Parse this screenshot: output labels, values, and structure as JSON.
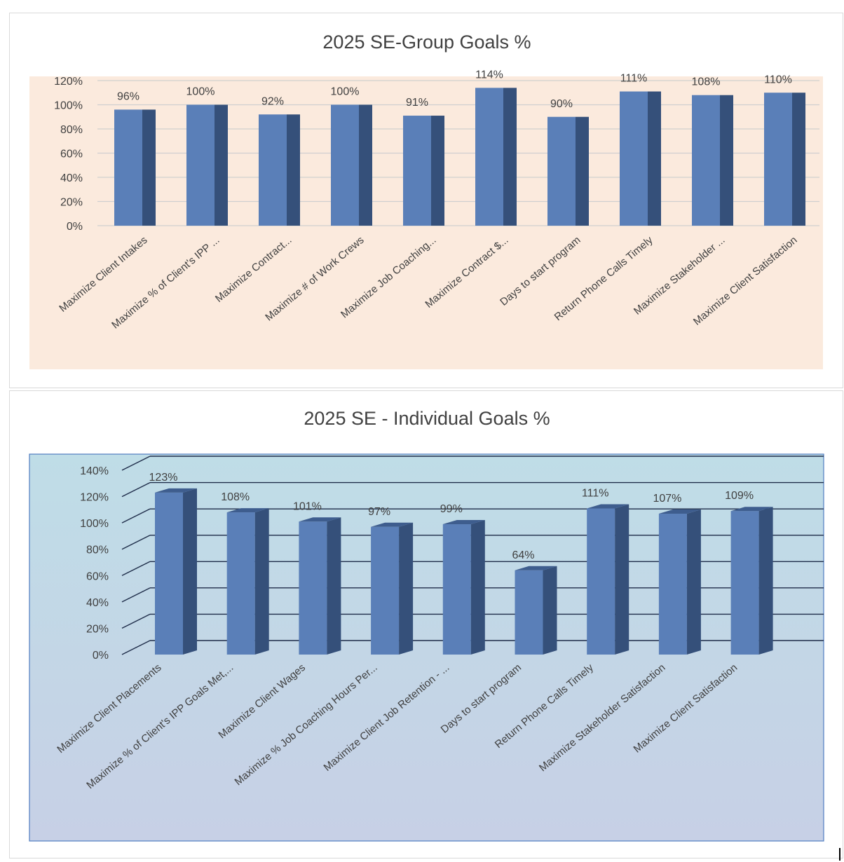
{
  "chart_data": [
    {
      "type": "bar",
      "title": "2025 SE-Group Goals %",
      "categories": [
        "Maximize Client Intakes",
        "Maximize % of Client's IPP ...",
        "Maximize Contract...",
        "Maximize # of Work Crews",
        "Maximize Job Coaching...",
        "Maximize Contract $...",
        "Days to start program",
        "Return Phone Calls Timely",
        "Maximize Stakeholder ...",
        "Maximize Client Satisfaction"
      ],
      "values": [
        96,
        100,
        92,
        100,
        91,
        114,
        90,
        111,
        108,
        110
      ],
      "data_labels": [
        "96%",
        "100%",
        "92%",
        "100%",
        "91%",
        "114%",
        "90%",
        "111%",
        "108%",
        "110%"
      ],
      "y_ticks": [
        "0%",
        "20%",
        "40%",
        "60%",
        "80%",
        "100%",
        "120%"
      ],
      "ylim": [
        0,
        120
      ],
      "grid": true,
      "colors": {
        "bar_front": "#5a7fb8",
        "bar_side": "#35507a",
        "plot_bg": "#fbeadd",
        "grid": "#d0d0d0"
      }
    },
    {
      "type": "bar",
      "title": "2025 SE - Individual Goals %",
      "categories": [
        "Maximize Client Placements",
        "Maximize % of Client's IPP Goals Met,...",
        "Maximize Client Wages",
        "Maximize % Job Coaching Hours Per...",
        "Maximize Client Job Retention - ...",
        "Days to start program",
        "Return Phone Calls Timely",
        "Maximize Stakeholder Satisfaction",
        "Maximize Client Satisfaction"
      ],
      "values": [
        123,
        108,
        101,
        97,
        99,
        64,
        111,
        107,
        109
      ],
      "data_labels": [
        "123%",
        "108%",
        "101%",
        "97%",
        "99%",
        "64%",
        "111%",
        "107%",
        "109%"
      ],
      "y_ticks": [
        "0%",
        "20%",
        "40%",
        "60%",
        "80%",
        "100%",
        "120%",
        "140%"
      ],
      "ylim": [
        0,
        140
      ],
      "grid": true,
      "colors": {
        "bar_front": "#5a7fb8",
        "bar_top": "#3e5d8e",
        "bar_side": "#35507a",
        "plot_bg_top": "#bfdde7",
        "plot_bg_bottom": "#c7d0e6",
        "border": "#4f7cc0",
        "grid": "#1f2d4a"
      }
    }
  ]
}
